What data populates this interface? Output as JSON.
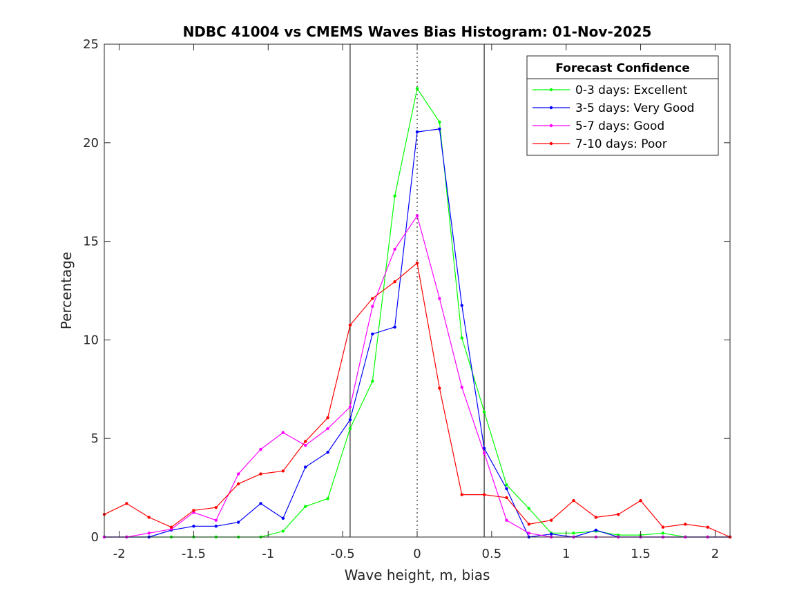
{
  "chart_data": {
    "type": "line",
    "title": "NDBC 41004 vs CMEMS Waves Bias Histogram: 01-Nov-2025",
    "xlabel": "Wave height, m, bias",
    "ylabel": "Percentage",
    "xlim": [
      -2.1,
      2.1
    ],
    "ylim": [
      0,
      25
    ],
    "xticks": [
      -2,
      -1.5,
      -1,
      -0.5,
      0,
      0.5,
      1,
      1.5,
      2
    ],
    "xtick_labels": [
      "-2",
      "-1.5",
      "-1",
      "-0.5",
      "0",
      "0.5",
      "1",
      "1.5",
      "2"
    ],
    "yticks": [
      0,
      5,
      10,
      15,
      20,
      25
    ],
    "ytick_labels": [
      "0",
      "5",
      "10",
      "15",
      "20",
      "25"
    ],
    "grid": false,
    "reference_lines": [
      {
        "x": -0.45,
        "style": "solid"
      },
      {
        "x": 0,
        "style": "dotted"
      },
      {
        "x": 0.45,
        "style": "solid"
      }
    ],
    "legend": {
      "title": "Forecast Confidence",
      "location": "top-right"
    },
    "x": [
      -2.1,
      -1.95,
      -1.8,
      -1.65,
      -1.5,
      -1.35,
      -1.2,
      -1.05,
      -0.9,
      -0.75,
      -0.6,
      -0.45,
      -0.3,
      -0.15,
      0,
      0.15,
      0.3,
      0.45,
      0.6,
      0.75,
      0.9,
      1.05,
      1.2,
      1.35,
      1.5,
      1.65,
      1.8,
      1.95,
      2.1
    ],
    "series": [
      {
        "name": "0-3 days: Excellent",
        "color": "#00ff00",
        "values": [
          0,
          0,
          0,
          0,
          0,
          0,
          0,
          0,
          0.3,
          1.55,
          1.95,
          5.5,
          7.9,
          17.3,
          22.75,
          21.05,
          10.1,
          6.35,
          2.65,
          1.45,
          0.2,
          0.2,
          0.3,
          0.1,
          0.1,
          0.2,
          0,
          0,
          0
        ]
      },
      {
        "name": "3-5 days: Very Good",
        "color": "#0000ff",
        "values": [
          0,
          0,
          0,
          0.35,
          0.55,
          0.55,
          0.75,
          1.7,
          0.95,
          3.55,
          4.3,
          5.95,
          10.3,
          10.65,
          20.55,
          20.7,
          11.75,
          4.5,
          2.45,
          0,
          0.15,
          0,
          0.35,
          0,
          0,
          0,
          0,
          0,
          0
        ]
      },
      {
        "name": "5-7 days: Good",
        "color": "#ff00ff",
        "values": [
          0,
          0,
          0.2,
          0.4,
          1.25,
          0.85,
          3.2,
          4.45,
          5.3,
          4.65,
          5.5,
          6.6,
          11.7,
          14.6,
          16.3,
          12.1,
          7.6,
          4.25,
          0.85,
          0.2,
          0,
          0,
          0,
          0,
          0,
          0,
          0,
          0,
          0
        ]
      },
      {
        "name": "7-10 days: Poor",
        "color": "#ff0000",
        "values": [
          1.15,
          1.7,
          1.0,
          0.5,
          1.35,
          1.5,
          2.7,
          3.2,
          3.35,
          4.85,
          6.05,
          10.75,
          12.1,
          12.95,
          13.9,
          7.55,
          2.15,
          2.15,
          2.0,
          0.65,
          0.85,
          1.85,
          1.0,
          1.15,
          1.85,
          0.5,
          0.65,
          0.5,
          0
        ]
      }
    ]
  }
}
